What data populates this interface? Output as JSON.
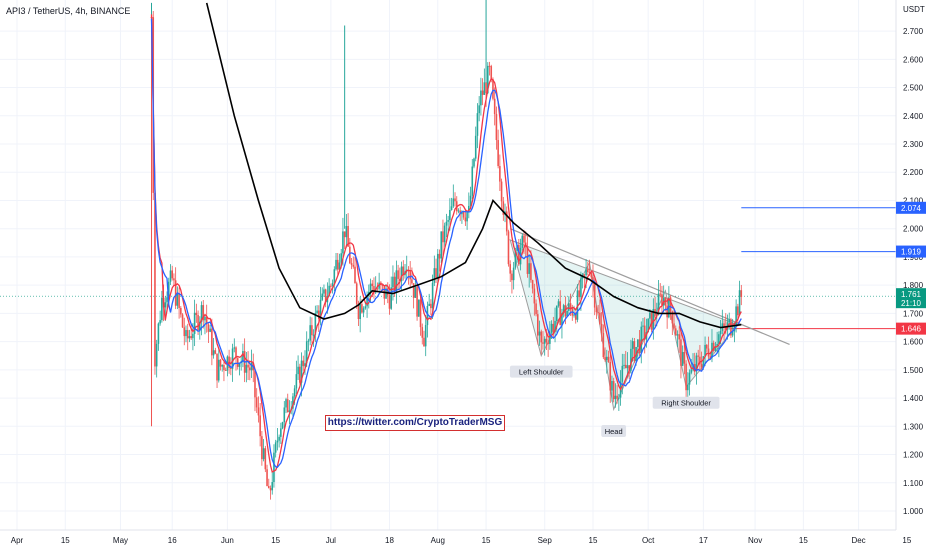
{
  "header": {
    "title": "API3 / TetherUS, 4h, BINANCE"
  },
  "annotation": {
    "link": "https://twitter.com/CryptoTraderMSG"
  },
  "chart_data": {
    "type": "candlestick",
    "symbol": "API3 / TetherUS",
    "timeframe": "4h",
    "exchange": "BINANCE",
    "currency_label": "USDT",
    "y_ticks": [
      2.7,
      2.6,
      2.5,
      2.4,
      2.3,
      2.2,
      2.1,
      2.0,
      1.9,
      1.8,
      1.7,
      1.6,
      1.5,
      1.4,
      1.3,
      1.2,
      1.1,
      1.0
    ],
    "x_ticks": [
      "Apr",
      "15",
      "May",
      "16",
      "Jun",
      "15",
      "Jul",
      "18",
      "Aug",
      "15",
      "Sep",
      "15",
      "Oct",
      "17",
      "Nov",
      "15",
      "Dec",
      "15"
    ],
    "last_price": {
      "value": "1.761",
      "countdown": "21:10",
      "color": "#089981"
    },
    "resistance_levels": [
      {
        "value": 2.074,
        "label": "2.074",
        "color": "#2962ff"
      },
      {
        "value": 1.919,
        "label": "1.919",
        "color": "#2962ff"
      }
    ],
    "support_level": {
      "value": 1.646,
      "label": "1.646",
      "color": "#f23645"
    },
    "pattern": {
      "name": "Inverse Head and Shoulders",
      "labels": [
        "Left Shoulder",
        "Head",
        "Right Shoulder"
      ]
    },
    "price_path": [
      [
        "May 10",
        2.75
      ],
      [
        "May 11",
        1.55
      ],
      [
        "May 13",
        1.75
      ],
      [
        "May 16",
        1.82
      ],
      [
        "May 20",
        1.6
      ],
      [
        "May 25",
        1.72
      ],
      [
        "May 29",
        1.5
      ],
      [
        "Jun 3",
        1.56
      ],
      [
        "Jun 8",
        1.5
      ],
      [
        "Jun 13",
        1.04
      ],
      [
        "Jun 16",
        1.3
      ],
      [
        "Jun 21",
        1.45
      ],
      [
        "Jun 27",
        1.7
      ],
      [
        "Jul 1",
        1.8
      ],
      [
        "Jul 5",
        2.0
      ],
      [
        "Jul 9",
        1.72
      ],
      [
        "Jul 13",
        1.8
      ],
      [
        "Jul 18",
        1.76
      ],
      [
        "Jul 23",
        1.9
      ],
      [
        "Jul 28",
        1.62
      ],
      [
        "Aug 2",
        1.95
      ],
      [
        "Aug 6",
        2.1
      ],
      [
        "Aug 10",
        2.05
      ],
      [
        "Aug 13",
        2.45
      ],
      [
        "Aug 16",
        2.55
      ],
      [
        "Aug 19",
        2.2
      ],
      [
        "Aug 22",
        1.85
      ],
      [
        "Aug 26",
        1.95
      ],
      [
        "Aug 31",
        1.58
      ],
      [
        "Sep 5",
        1.7
      ],
      [
        "Sep 10",
        1.72
      ],
      [
        "Sep 14",
        1.88
      ],
      [
        "Sep 17",
        1.65
      ],
      [
        "Sep 21",
        1.4
      ],
      [
        "Sep 26",
        1.55
      ],
      [
        "Oct 1",
        1.65
      ],
      [
        "Oct 5",
        1.76
      ],
      [
        "Oct 8",
        1.7
      ],
      [
        "Oct 12",
        1.46
      ],
      [
        "Oct 17",
        1.55
      ],
      [
        "Oct 21",
        1.62
      ],
      [
        "Oct 25",
        1.66
      ],
      [
        "Oct 28",
        1.76
      ]
    ],
    "ma_long": [
      [
        "May 26",
        2.8
      ],
      [
        "Jun 3",
        2.4
      ],
      [
        "Jun 10",
        2.1
      ],
      [
        "Jun 16",
        1.86
      ],
      [
        "Jun 22",
        1.72
      ],
      [
        "Jun 29",
        1.68
      ],
      [
        "Jul 5",
        1.7
      ],
      [
        "Jul 9",
        1.73
      ],
      [
        "Jul 13",
        1.78
      ],
      [
        "Jul 19",
        1.77
      ],
      [
        "Jul 26",
        1.8
      ],
      [
        "Aug 2",
        1.83
      ],
      [
        "Aug 9",
        1.88
      ],
      [
        "Aug 14",
        2.0
      ],
      [
        "Aug 17",
        2.1
      ],
      [
        "Aug 23",
        2.02
      ],
      [
        "Aug 30",
        1.95
      ],
      [
        "Sep 7",
        1.86
      ],
      [
        "Sep 14",
        1.82
      ],
      [
        "Sep 21",
        1.76
      ],
      [
        "Sep 28",
        1.72
      ],
      [
        "Oct 4",
        1.7
      ],
      [
        "Oct 10",
        1.7
      ],
      [
        "Oct 16",
        1.67
      ],
      [
        "Oct 22",
        1.65
      ],
      [
        "Oct 28",
        1.66
      ]
    ]
  }
}
